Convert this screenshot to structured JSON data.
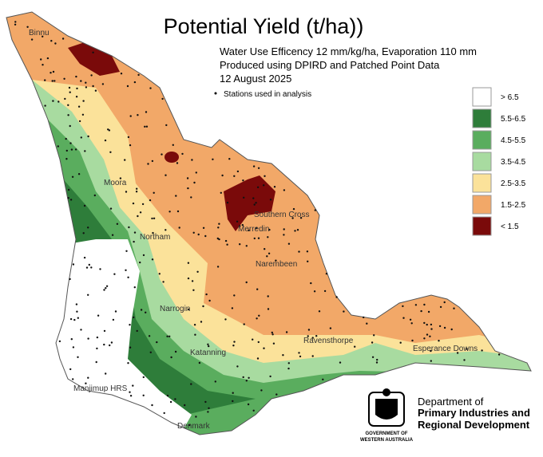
{
  "title": "Potential Yield (t/ha))",
  "subtitle": [
    "Water Use Efficency 12 mm/kg/ha, Evaporation 110 mm",
    "Produced using DPIRD and Patched Point Data",
    "12 August 2025"
  ],
  "stations_note": "Stations used in analysis",
  "legend": [
    {
      "label": "> 6.5",
      "color": "#ffffff"
    },
    {
      "label": "5.5-6.5",
      "color": "#2e7d3a"
    },
    {
      "label": "4.5-5.5",
      "color": "#5aad5e"
    },
    {
      "label": "3.5-4.5",
      "color": "#a8dba0"
    },
    {
      "label": "2.5-3.5",
      "color": "#fbe29a"
    },
    {
      "label": "1.5-2.5",
      "color": "#f2a868"
    },
    {
      "label": "< 1.5",
      "color": "#7a0a0a"
    }
  ],
  "towns": [
    "Binnu",
    "Moora",
    "Northam",
    "Merredin",
    "Southern Cross",
    "Narembeen",
    "Narrogin",
    "Katanning",
    "Ravensthorpe",
    "Esperance Downs",
    "Manjimup HRS",
    "Denmark"
  ],
  "agency": [
    "Department of",
    "Primary Industries and",
    "Regional Development"
  ],
  "government": [
    "GOVERNMENT OF",
    "WESTERN AUSTRALIA"
  ]
}
